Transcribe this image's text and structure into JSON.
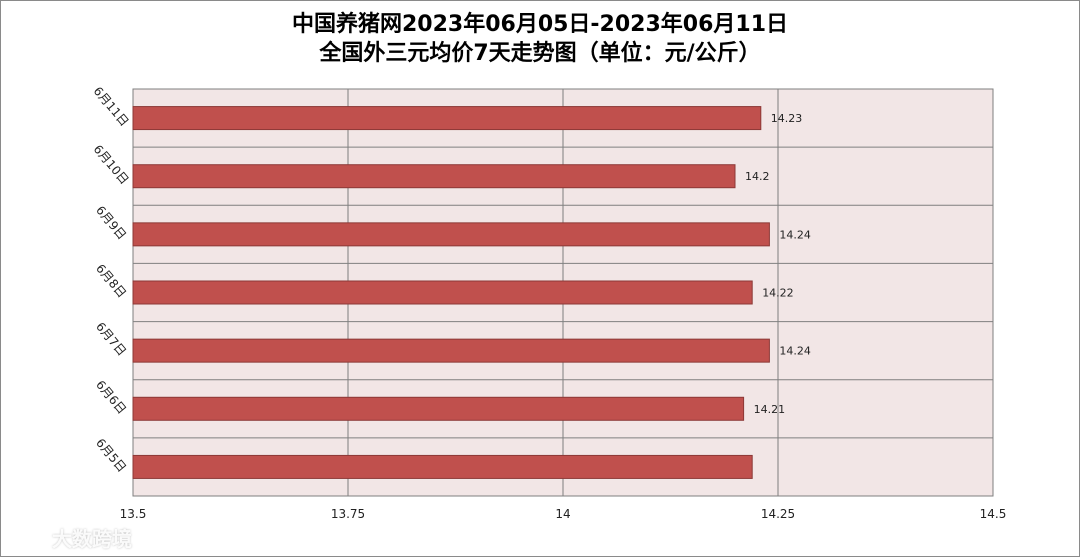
{
  "chart_data": {
    "type": "bar",
    "orientation": "horizontal",
    "title": "中国养猪网2023年06月05日-2023年06月11日",
    "subtitle": "全国外三元均价7天走势图（单位：元/公斤）",
    "categories": [
      "6月11日",
      "6月10日",
      "6月9日",
      "6月8日",
      "6月7日",
      "6月6日",
      "6月5日"
    ],
    "values": [
      14.23,
      14.2,
      14.24,
      14.22,
      14.24,
      14.21,
      14.22
    ],
    "data_labels": [
      "14.23",
      "14.2",
      "14.24",
      "14.22",
      "14.24",
      "14.21",
      ""
    ],
    "xlim": [
      13.5,
      14.5
    ],
    "xticks": [
      "13.5",
      "13.75",
      "14",
      "14.25",
      "14.5"
    ],
    "xtick_values": [
      13.5,
      13.75,
      14,
      14.25,
      14.5
    ],
    "grid": true,
    "bar_color": "#c0504d",
    "plot_background": "#f2e6e6"
  },
  "watermark": {
    "text": "大数跨境"
  }
}
